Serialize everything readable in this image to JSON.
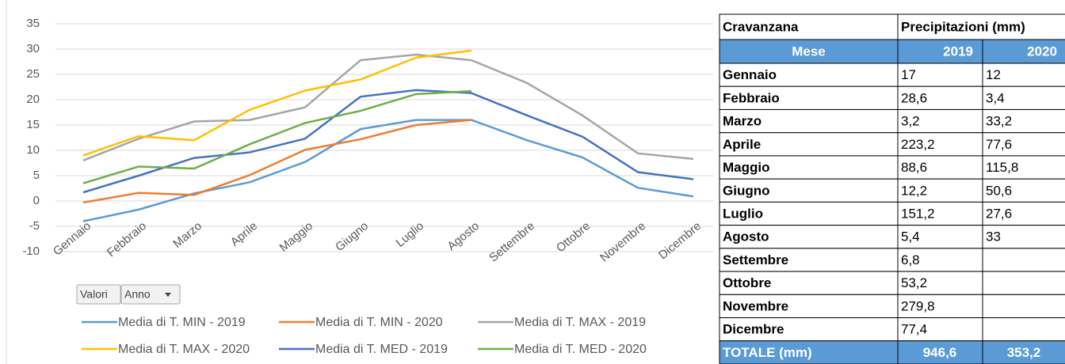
{
  "chart_data": {
    "type": "line",
    "categories": [
      "Gennaio",
      "Febbraio",
      "Marzo",
      "Aprile",
      "Maggio",
      "Giugno",
      "Luglio",
      "Agosto",
      "Settembre",
      "Ottobre",
      "Novembre",
      "Dicembre"
    ],
    "series": [
      {
        "name": "Media di T. MIN - 2019",
        "color": "#5b9bd5",
        "values": [
          -4,
          -1.7,
          1.5,
          3.7,
          7.7,
          14.2,
          16,
          16,
          12,
          8.6,
          2.6,
          0.9
        ]
      },
      {
        "name": "Media di T. MIN - 2020",
        "color": "#ed7d31",
        "values": [
          -0.3,
          1.6,
          1.2,
          5.1,
          10.1,
          12.2,
          15,
          16,
          null,
          null,
          null,
          null
        ]
      },
      {
        "name": "Media di T. MAX  - 2019",
        "color": "#a5a5a5",
        "values": [
          8,
          12.3,
          15.7,
          16,
          18.5,
          27.8,
          28.9,
          27.8,
          23.3,
          16.9,
          9.4,
          8.3
        ]
      },
      {
        "name": "Media di T. MAX  - 2020",
        "color": "#ffc000",
        "values": [
          9,
          12.8,
          12,
          18,
          21.8,
          24,
          28.3,
          29.7,
          null,
          null,
          null,
          null
        ]
      },
      {
        "name": "Media di T. MED - 2019",
        "color": "#4472c4",
        "values": [
          1.7,
          5,
          8.5,
          9.6,
          12.3,
          20.6,
          21.9,
          21.3,
          16.9,
          12.7,
          5.7,
          4.3
        ]
      },
      {
        "name": "Media di T. MED - 2020",
        "color": "#70ad47",
        "values": [
          3.5,
          6.8,
          6.4,
          11.2,
          15.4,
          17.8,
          21.1,
          21.7,
          null,
          null,
          null,
          null
        ]
      }
    ],
    "ylim": [
      -10,
      35
    ],
    "yticks": [
      -10,
      -5,
      0,
      5,
      10,
      15,
      20,
      25,
      30,
      35
    ],
    "grid": true,
    "buttons": [
      "Valori",
      "Anno"
    ]
  },
  "table": {
    "header": [
      "Cravanzana",
      "Precipitazioni (mm)"
    ],
    "columns": [
      "Mese",
      "2019",
      "2020"
    ],
    "rows": [
      [
        "Gennaio",
        "17",
        "12"
      ],
      [
        "Febbraio",
        "28,6",
        "3,4"
      ],
      [
        "Marzo",
        "3,2",
        "33,2"
      ],
      [
        "Aprile",
        "223,2",
        "77,6"
      ],
      [
        "Maggio",
        "88,6",
        "115,8"
      ],
      [
        "Giugno",
        "12,2",
        "50,6"
      ],
      [
        "Luglio",
        "151,2",
        "27,6"
      ],
      [
        "Agosto",
        "5,4",
        "33"
      ],
      [
        "Settembre",
        "6,8"
      ],
      [
        "Ottobre",
        "53,2"
      ],
      [
        "Novembre",
        "279,8"
      ],
      [
        "Dicembre",
        "77,4"
      ]
    ],
    "total": [
      "TOTALE (mm)",
      "946,6",
      "353,2"
    ]
  }
}
